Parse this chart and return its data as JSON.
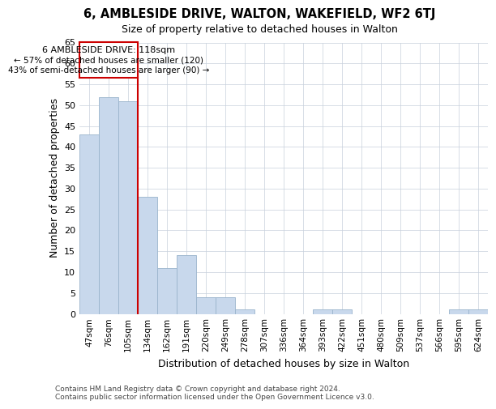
{
  "title": "6, AMBLESIDE DRIVE, WALTON, WAKEFIELD, WF2 6TJ",
  "subtitle": "Size of property relative to detached houses in Walton",
  "xlabel": "Distribution of detached houses by size in Walton",
  "ylabel": "Number of detached properties",
  "footer_line1": "Contains HM Land Registry data © Crown copyright and database right 2024.",
  "footer_line2": "Contains public sector information licensed under the Open Government Licence v3.0.",
  "annotation_line1": "6 AMBLESIDE DRIVE: 118sqm",
  "annotation_line2": "← 57% of detached houses are smaller (120)",
  "annotation_line3": "43% of semi-detached houses are larger (90) →",
  "categories": [
    "47sqm",
    "76sqm",
    "105sqm",
    "134sqm",
    "162sqm",
    "191sqm",
    "220sqm",
    "249sqm",
    "278sqm",
    "307sqm",
    "336sqm",
    "364sqm",
    "393sqm",
    "422sqm",
    "451sqm",
    "480sqm",
    "509sqm",
    "537sqm",
    "566sqm",
    "595sqm",
    "624sqm"
  ],
  "values": [
    43,
    52,
    51,
    28,
    11,
    14,
    4,
    4,
    1,
    0,
    0,
    0,
    1,
    1,
    0,
    0,
    0,
    0,
    0,
    1,
    1
  ],
  "bar_color": "#c8d8ec",
  "bar_edge_color": "#9ab4cc",
  "vline_color": "#cc0000",
  "vline_bin_index": 2,
  "annotation_box_color": "#cc0000",
  "annotation_text_color": "#000000",
  "background_color": "#ffffff",
  "grid_color": "#c8d0dc",
  "ylim": [
    0,
    65
  ],
  "yticks": [
    0,
    5,
    10,
    15,
    20,
    25,
    30,
    35,
    40,
    45,
    50,
    55,
    60,
    65
  ],
  "figsize": [
    6.0,
    5.0
  ],
  "dpi": 100
}
